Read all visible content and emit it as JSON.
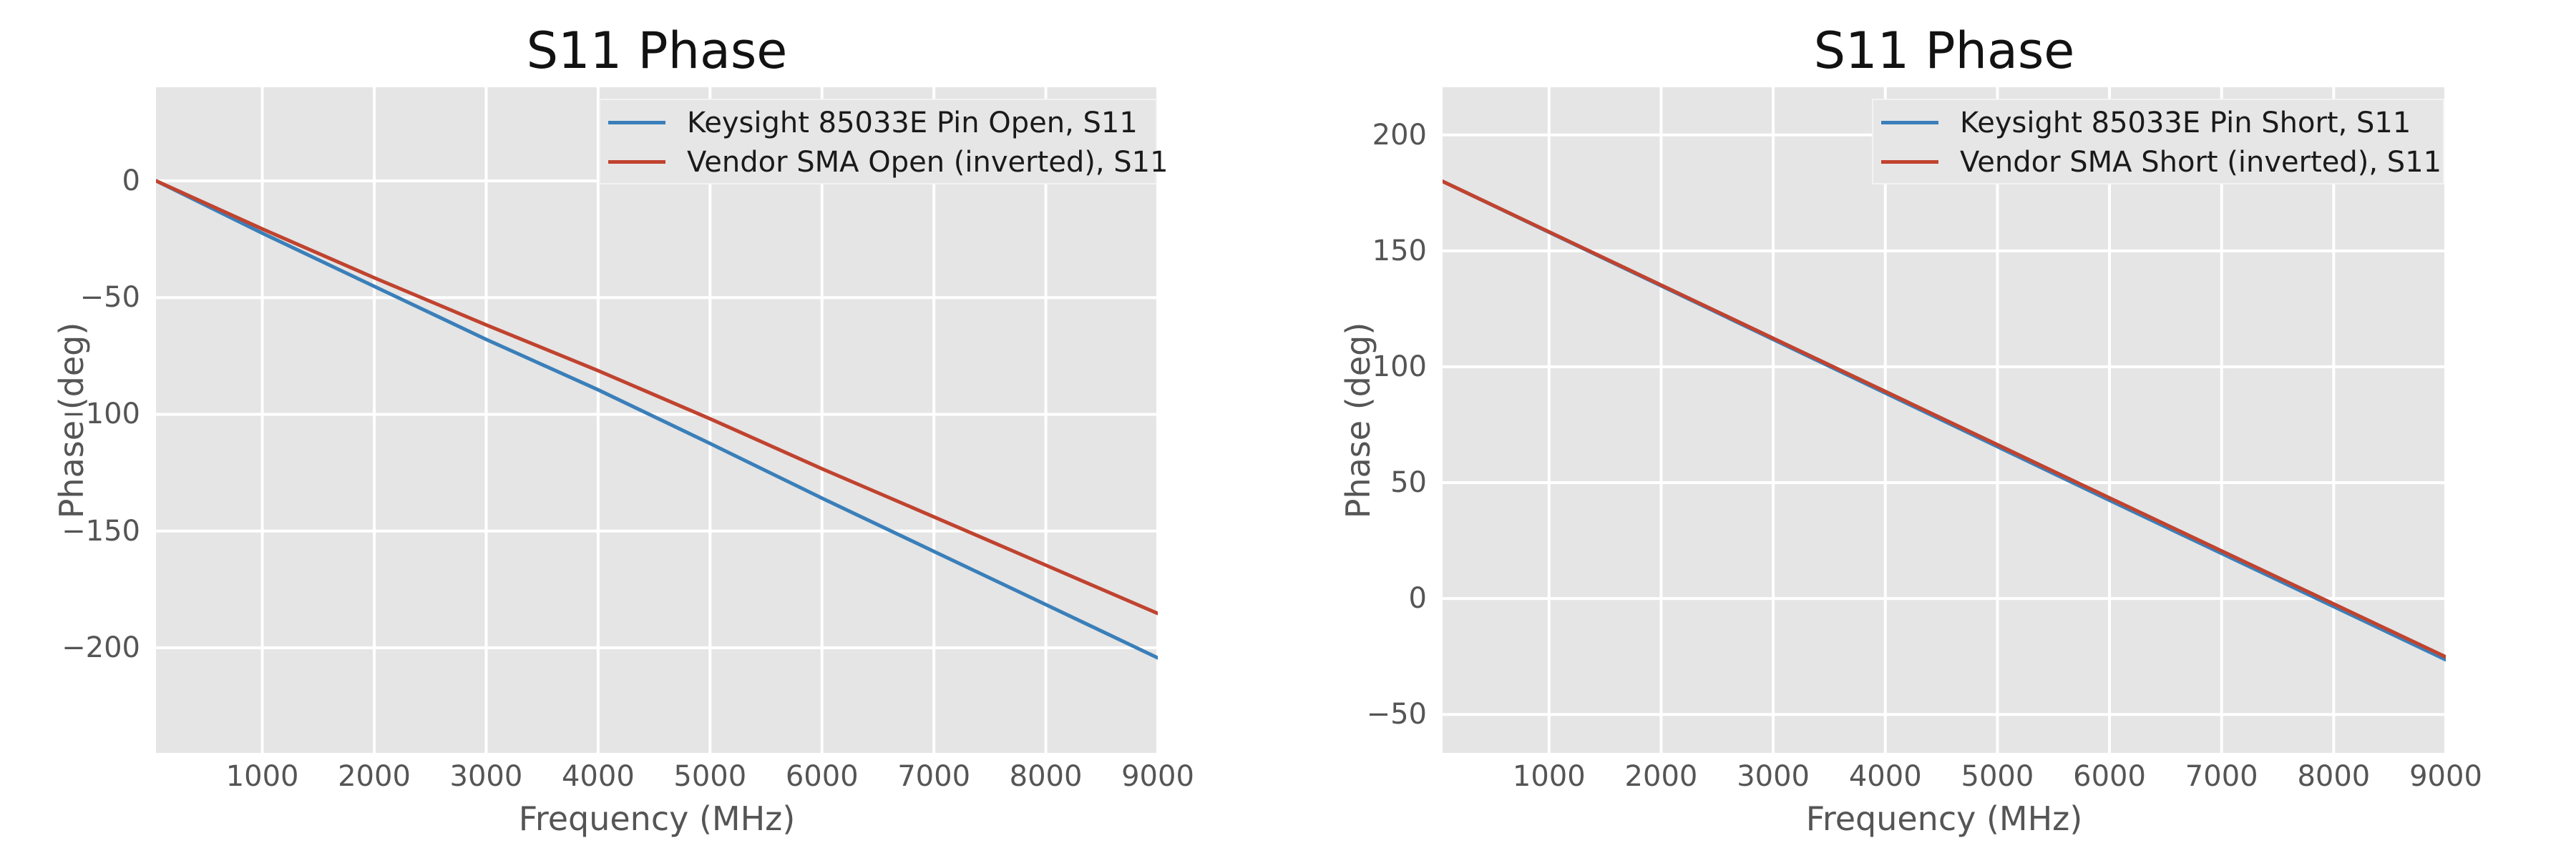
{
  "figure": {
    "background": "#ffffff",
    "axes_background": "#e5e5e5",
    "grid_color": "#ffffff",
    "tick_color": "#555555",
    "title_color": "#121212",
    "legend_text_color": "#1a1a1a"
  },
  "chart_data": [
    {
      "type": "line",
      "title": "S11 Phase",
      "xlabel": "Frequency (MHz)",
      "ylabel": "Phase (deg)",
      "xlim": [
        50,
        9000
      ],
      "ylim": [
        -245.0,
        40.1
      ],
      "xticks": [
        1000,
        2000,
        3000,
        4000,
        5000,
        6000,
        7000,
        8000,
        9000
      ],
      "yticks": [
        0,
        -50,
        -100,
        -150,
        -200
      ],
      "grid": true,
      "legend_position": "upper right",
      "series": [
        {
          "name": "Keysight 85033E Pin Open, S11",
          "color": "#3a7fb9",
          "points": [
            [
              50,
              0
            ],
            [
              1000,
              -22.4
            ],
            [
              2000,
              -45.2
            ],
            [
              3000,
              -67.9
            ],
            [
              4000,
              -89.5
            ],
            [
              5000,
              -112.5
            ],
            [
              6000,
              -135.9
            ],
            [
              7000,
              -158.7
            ],
            [
              8000,
              -181.5
            ],
            [
              9000,
              -204.3
            ]
          ]
        },
        {
          "name": "Vendor SMA Open (inverted), S11",
          "color": "#c0432f",
          "points": [
            [
              50,
              0
            ],
            [
              1000,
              -20.6
            ],
            [
              2000,
              -41.5
            ],
            [
              3000,
              -61.7
            ],
            [
              4000,
              -81.3
            ],
            [
              5000,
              -101.9
            ],
            [
              6000,
              -123.3
            ],
            [
              7000,
              -143.9
            ],
            [
              8000,
              -164.6
            ],
            [
              9000,
              -185.3
            ]
          ]
        }
      ]
    },
    {
      "type": "line",
      "title": "S11 Phase",
      "xlabel": "Frequency (MHz)",
      "ylabel": "Phase (deg)",
      "xlim": [
        50,
        9000
      ],
      "ylim": [
        -66.6,
        220.6
      ],
      "xticks": [
        1000,
        2000,
        3000,
        4000,
        5000,
        6000,
        7000,
        8000,
        9000
      ],
      "yticks": [
        200,
        150,
        100,
        50,
        0,
        -50
      ],
      "grid": true,
      "legend_position": "upper right",
      "series": [
        {
          "name": "Keysight 85033E Pin Short, S11",
          "color": "#3a7fb9",
          "points": [
            [
              50,
              180
            ],
            [
              3000,
              111.8
            ],
            [
              6000,
              42.4
            ],
            [
              9000,
              -26.4
            ]
          ]
        },
        {
          "name": "Vendor SMA Short (inverted), S11",
          "color": "#c0432f",
          "points": [
            [
              50,
              180
            ],
            [
              3000,
              112.3
            ],
            [
              6000,
              43.4
            ],
            [
              9000,
              -25.2
            ]
          ]
        }
      ]
    }
  ]
}
